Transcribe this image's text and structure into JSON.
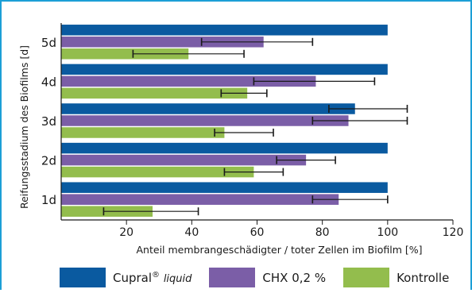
{
  "chart_data": {
    "type": "bar",
    "orientation": "horizontal",
    "categories": [
      "5d",
      "4d",
      "3d",
      "2d",
      "1d"
    ],
    "xlabel": "Anteil membrangeschädigter / toter Zellen im Biofilm [%]",
    "ylabel": "Reifungsstadium des Biofilms [d]",
    "xlim": [
      0,
      120
    ],
    "xticks": [
      20,
      40,
      60,
      80,
      100,
      120
    ],
    "grid": false,
    "legend_position": "bottom",
    "series": [
      {
        "name": "Cupral® liquid",
        "color": "#0a5aa0",
        "values": [
          100,
          100,
          90,
          100,
          100
        ],
        "error_low": [
          null,
          null,
          82,
          null,
          null
        ],
        "error_high": [
          null,
          null,
          106,
          null,
          null
        ]
      },
      {
        "name": "CHX 0,2 %",
        "color": "#7b5ea7",
        "values": [
          62,
          78,
          88,
          75,
          85
        ],
        "error_low": [
          43,
          59,
          77,
          66,
          77
        ],
        "error_high": [
          77,
          96,
          106,
          84,
          100
        ]
      },
      {
        "name": "Kontrolle",
        "color": "#93bd4d",
        "values": [
          39,
          57,
          50,
          59,
          28
        ],
        "error_low": [
          22,
          49,
          47,
          50,
          13
        ],
        "error_high": [
          56,
          63,
          65,
          68,
          42
        ]
      }
    ]
  },
  "legend": {
    "items": [
      {
        "label": "Cupral",
        "sup": "®",
        "script": "liquid",
        "color": "#0a5aa0"
      },
      {
        "label": "CHX 0,2 %",
        "color": "#7b5ea7"
      },
      {
        "label": "Kontrolle",
        "color": "#93bd4d"
      }
    ]
  }
}
